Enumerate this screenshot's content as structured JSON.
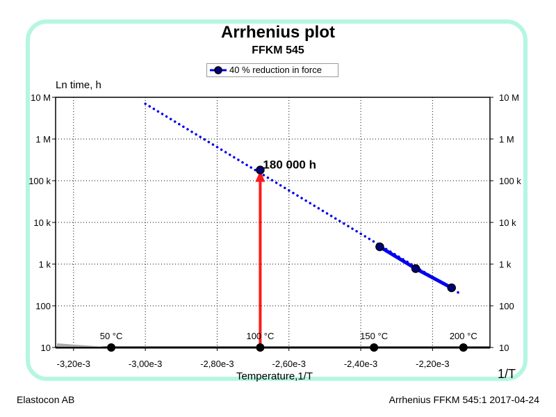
{
  "chart_data": {
    "type": "line",
    "title": "Arrhenius plot",
    "subtitle": "FFKM 545",
    "xlabel": "Temperature,1/T",
    "x_unit": "1/T",
    "ylabel": "Ln time, h",
    "y_scale": "log",
    "xlim": [
      -0.00325,
      -0.00204
    ],
    "ylim": [
      10,
      10000000
    ],
    "x_ticks": [
      -0.0032,
      -0.003,
      -0.0028,
      -0.0026,
      -0.0024,
      -0.0022
    ],
    "x_tick_labels": [
      "-3,20e-3",
      "-3,00e-3",
      "-2,80e-3",
      "-2,60e-3",
      "-2,40e-3",
      "-2,20e-3"
    ],
    "y_ticks": [
      10,
      100,
      1000,
      10000,
      100000,
      1000000,
      10000000
    ],
    "y_tick_labels": [
      "10",
      "100",
      "1 k",
      "10 k",
      "100 k",
      "1 M",
      "10 M"
    ],
    "grid": true,
    "legend_position": "top-center",
    "series": [
      {
        "name": "40 % reduction in force",
        "color": "#0000ee",
        "measured": [
          {
            "x": -0.002347,
            "y": 2600
          },
          {
            "x": -0.002247,
            "y": 780
          },
          {
            "x": -0.002147,
            "y": 270
          }
        ],
        "extrapolation": [
          {
            "x": -0.003,
            "y": 7000000
          },
          {
            "x": -0.002121,
            "y": 190
          }
        ]
      }
    ],
    "temperature_markers": [
      {
        "label": "50 °C",
        "x": -0.003095
      },
      {
        "label": "100 °C",
        "x": -0.00268
      },
      {
        "label": "150 °C",
        "x": -0.002363
      },
      {
        "label": "200 °C",
        "x": -0.002114
      }
    ],
    "annotation": {
      "label": "180 000 h",
      "x": -0.00268,
      "y": 180000,
      "arrow_color": "#ff1a1a"
    }
  },
  "footer": {
    "left": "Elastocon AB",
    "right": "Arrhenius FFKM 545:1  2017-04-24"
  }
}
